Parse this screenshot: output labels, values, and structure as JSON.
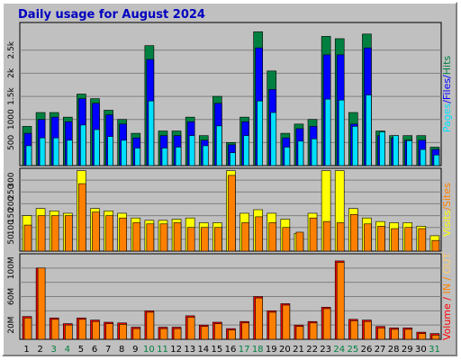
{
  "chart_data": {
    "type": "bar",
    "title": "Daily usage for August 2024",
    "colors": {
      "hits": "#008040",
      "files": "#0000ff",
      "pages": "#00e0ff",
      "visits": "#ffff00",
      "sites": "#ff8000",
      "volume": "#ff0000",
      "kbin": "#ff8000",
      "kbout": "#ffcc66",
      "weekend": "#008040",
      "background": "#c0c0c0"
    },
    "x": [
      "1",
      "2",
      "3",
      "4",
      "5",
      "6",
      "7",
      "8",
      "9",
      "10",
      "11",
      "12",
      "13",
      "14",
      "15",
      "16",
      "17",
      "18",
      "19",
      "20",
      "21",
      "22",
      "23",
      "24",
      "25",
      "26",
      "27",
      "28",
      "29",
      "30",
      "31"
    ],
    "weekend_days": [
      "3",
      "4",
      "10",
      "11",
      "17",
      "18",
      "24",
      "25",
      "31"
    ],
    "panels": [
      {
        "name": "hits-files-pages",
        "right_label_parts": [
          {
            "text": "Pages",
            "color": "#00e0ff"
          },
          {
            "text": "/",
            "color": "#0000ff"
          },
          {
            "text": "Files",
            "color": "#0000ff"
          },
          {
            "text": "/",
            "color": "#0000ff"
          },
          {
            "text": "Hits",
            "color": "#008040"
          }
        ],
        "ylim": [
          0,
          3100
        ],
        "yticks": [
          500,
          1000,
          1500,
          2000,
          2500
        ],
        "ytick_labels": [
          "500",
          "1000",
          "1.5k",
          "2k",
          "2.5k"
        ],
        "series": [
          {
            "name": "Hits",
            "color": "#008040",
            "values": [
              850,
              1150,
              1150,
              1050,
              1550,
              1450,
              1200,
              1000,
              700,
              2600,
              750,
              750,
              1050,
              650,
              1500,
              500,
              1050,
              2900,
              2050,
              700,
              900,
              1000,
              2800,
              2750,
              1150,
              2850,
              750,
              650,
              650,
              650,
              400
            ]
          },
          {
            "name": "Files",
            "color": "#0000ff",
            "values": [
              700,
              1000,
              1050,
              950,
              1450,
              1350,
              1100,
              900,
              600,
              2300,
              650,
              650,
              950,
              550,
              1350,
              450,
              950,
              2550,
              1650,
              600,
              800,
              850,
              2400,
              2400,
              900,
              2550,
              650,
              600,
              550,
              550,
              350
            ]
          },
          {
            "name": "Pages",
            "color": "#00e0ff",
            "values": [
              430,
              600,
              600,
              550,
              880,
              780,
              630,
              550,
              380,
              1400,
              380,
              400,
              650,
              430,
              860,
              280,
              650,
              1400,
              1150,
              400,
              530,
              580,
              1440,
              1420,
              850,
              1530,
              730,
              650,
              540,
              350,
              230
            ]
          }
        ]
      },
      {
        "name": "visits-sites",
        "right_label_parts": [
          {
            "text": "Visits",
            "color": "#ffff00"
          },
          {
            "text": "/",
            "color": "#ff8000"
          },
          {
            "text": "Sites",
            "color": "#ff8000"
          }
        ],
        "ylim": [
          0,
          350
        ],
        "yticks": [
          50,
          100,
          150,
          200,
          250,
          300
        ],
        "ytick_labels": [
          "50",
          "100",
          "150",
          "200",
          "250",
          "300"
        ],
        "series": [
          {
            "name": "Visits",
            "color": "#ffff00",
            "values": [
              150,
              180,
              170,
              160,
              340,
              180,
              170,
              160,
              140,
              130,
              130,
              135,
              140,
              120,
              120,
              340,
              160,
              175,
              160,
              135,
              75,
              160,
              340,
              340,
              180,
              140,
              125,
              120,
              120,
              105,
              65
            ]
          },
          {
            "name": "Sites",
            "color": "#ff8000",
            "values": [
              110,
              150,
              150,
              150,
              285,
              165,
              150,
              140,
              120,
              115,
              115,
              120,
              100,
              100,
              100,
              320,
              120,
              145,
              120,
              100,
              80,
              140,
              125,
              120,
              155,
              115,
              105,
              95,
              100,
              95,
              45
            ]
          }
        ]
      },
      {
        "name": "volume",
        "right_label_parts": [
          {
            "text": "Volume",
            "color": "#ff0000"
          },
          {
            "text": " / ",
            "color": "#ff0000"
          },
          {
            "text": "IN",
            "color": "#ff8000"
          },
          {
            "text": " / ",
            "color": "#ff8000"
          },
          {
            "text": "OUT",
            "color": "#ffcc66"
          }
        ],
        "ylim": [
          0,
          120
        ],
        "yticks": [
          20,
          40,
          60,
          80,
          100
        ],
        "ytick_labels": [
          "20M",
          "",
          "60M",
          "",
          "100M"
        ],
        "series": [
          {
            "name": "Volume",
            "color": "#ff0000",
            "values": [
              32,
              100,
              30,
              22,
              30,
              27,
              24,
              23,
              17,
              40,
              17,
              17,
              33,
              20,
              24,
              15,
              25,
              60,
              40,
              50,
              20,
              25,
              45,
              110,
              28,
              27,
              18,
              16,
              16,
              10,
              8
            ]
          },
          {
            "name": "Out",
            "color": "#ff8000",
            "values": [
              30,
              100,
              28,
              20,
              28,
              25,
              22,
              21,
              15,
              38,
              15,
              15,
              31,
              18,
              22,
              13,
              23,
              58,
              38,
              48,
              18,
              23,
              43,
              108,
              26,
              25,
              16,
              14,
              14,
              8,
              6
            ]
          }
        ]
      }
    ]
  }
}
